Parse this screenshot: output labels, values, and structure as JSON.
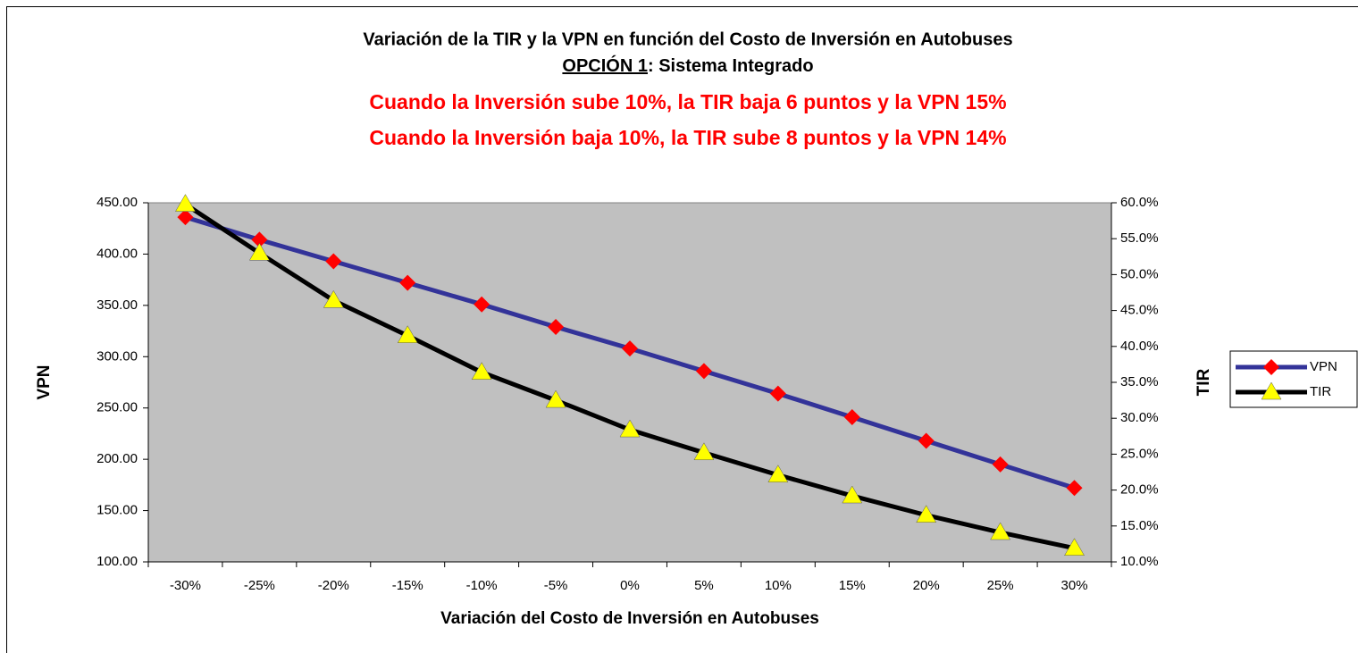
{
  "chart_data": {
    "type": "line",
    "title": "Variación de la TIR y la VPN en función del Costo de Inversión en Autobuses",
    "subtitle_underlined": "OPCIÓN 1",
    "subtitle_rest": ": Sistema Integrado",
    "annotations": [
      "Cuando la Inversión sube 10%, la TIR baja 6 puntos y la VPN 15%",
      "Cuando la Inversión baja 10%, la TIR sube 8 puntos y la VPN 14%"
    ],
    "x_label": "Variación del Costo de Inversión en Autobuses",
    "y_label": "VPN",
    "y2_label": "TIR",
    "categories": [
      "-30%",
      "-25%",
      "-20%",
      "-15%",
      "-10%",
      "-5%",
      "0%",
      "5%",
      "10%",
      "15%",
      "20%",
      "25%",
      "30%"
    ],
    "series": [
      {
        "name": "VPN",
        "color": "#333399",
        "marker_color": "#ff0000",
        "marker": "diamond",
        "values": [
          436,
          414,
          393,
          372,
          351,
          329,
          308,
          286,
          264,
          241,
          218,
          195,
          172
        ]
      },
      {
        "name": "TIR",
        "color": "#000000",
        "marker_color": "#ffff00",
        "marker": "triangle",
        "axis": "y2",
        "values": [
          59.8,
          53.0,
          46.4,
          41.5,
          36.4,
          32.5,
          28.4,
          25.2,
          22.1,
          19.2,
          16.5,
          14.1,
          11.9
        ]
      }
    ],
    "ylim": [
      100,
      450
    ],
    "yticks": [
      {
        "value": 100,
        "label": "100.00"
      },
      {
        "value": 150,
        "label": "150.00"
      },
      {
        "value": 200,
        "label": "200.00"
      },
      {
        "value": 250,
        "label": "250.00"
      },
      {
        "value": 300,
        "label": "300.00"
      },
      {
        "value": 350,
        "label": "350.00"
      },
      {
        "value": 400,
        "label": "400.00"
      },
      {
        "value": 450,
        "label": "450.00"
      }
    ],
    "y2lim": [
      10,
      60
    ],
    "y2ticks": [
      {
        "value": 10,
        "label": "10.0%"
      },
      {
        "value": 15,
        "label": "15.0%"
      },
      {
        "value": 20,
        "label": "20.0%"
      },
      {
        "value": 25,
        "label": "25.0%"
      },
      {
        "value": 30,
        "label": "30.0%"
      },
      {
        "value": 35,
        "label": "35.0%"
      },
      {
        "value": 40,
        "label": "40.0%"
      },
      {
        "value": 45,
        "label": "45.0%"
      },
      {
        "value": 50,
        "label": "50.0%"
      },
      {
        "value": 55,
        "label": "55.0%"
      },
      {
        "value": 60,
        "label": "60.0%"
      }
    ],
    "plot_background": "#c0c0c0",
    "legend": "right"
  }
}
